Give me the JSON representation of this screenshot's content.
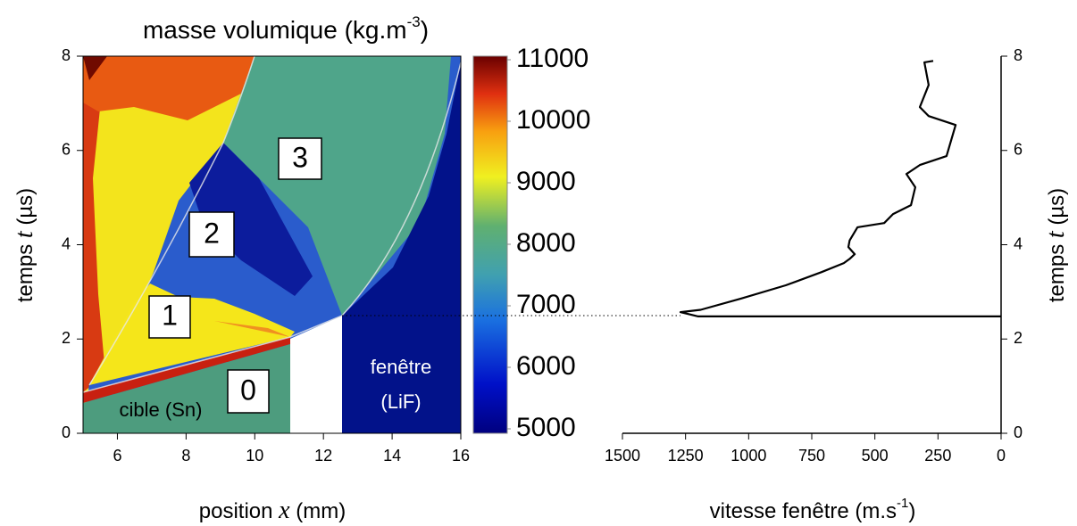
{
  "chart_data": [
    {
      "type": "xt-diagram",
      "title": [
        "masse volumique (kg.m",
        "-3",
        ")"
      ],
      "xlabel": [
        "position",
        "x",
        "(mm)"
      ],
      "ylabel": [
        "temps",
        "t",
        "(µs)"
      ],
      "xlim": [
        5,
        16
      ],
      "xticks": [
        6,
        8,
        10,
        12,
        14,
        16
      ],
      "ylim": [
        0,
        8
      ],
      "yticks": [
        0,
        2,
        4,
        6,
        8
      ],
      "colorbar": {
        "lim": [
          5000,
          11000
        ],
        "ticks": [
          5000,
          6000,
          7000,
          8000,
          9000,
          10000,
          11000
        ]
      },
      "regions": [
        "0",
        "1",
        "2",
        "3"
      ],
      "annotations": [
        "cible (Sn)",
        "fenêtre",
        "(LiF)"
      ]
    },
    {
      "type": "line",
      "xlabel": [
        "vitesse fenêtre (m.s",
        "-1",
        ")"
      ],
      "ylabel": [
        "temps",
        "t",
        "(µs)"
      ],
      "xlim": [
        1500,
        0
      ],
      "xticks": [
        1500,
        1250,
        1000,
        750,
        500,
        250,
        0
      ],
      "ylim": [
        0,
        8
      ],
      "yticks": [
        0,
        2,
        4,
        6,
        8
      ],
      "color": "#000000",
      "x": [
        0,
        1200,
        1270,
        1190,
        1029,
        853,
        711,
        623,
        600,
        580,
        605,
        600,
        569,
        463,
        428,
        357,
        340,
        375,
        322,
        216,
        180,
        287,
        322,
        287,
        304,
        269
      ],
      "values": [
        2.48,
        2.48,
        2.57,
        2.62,
        2.86,
        3.14,
        3.42,
        3.61,
        3.7,
        3.8,
        3.95,
        4.09,
        4.37,
        4.46,
        4.65,
        4.84,
        5.22,
        5.5,
        5.69,
        5.88,
        6.54,
        6.73,
        6.92,
        7.39,
        7.87,
        7.9
      ]
    }
  ]
}
